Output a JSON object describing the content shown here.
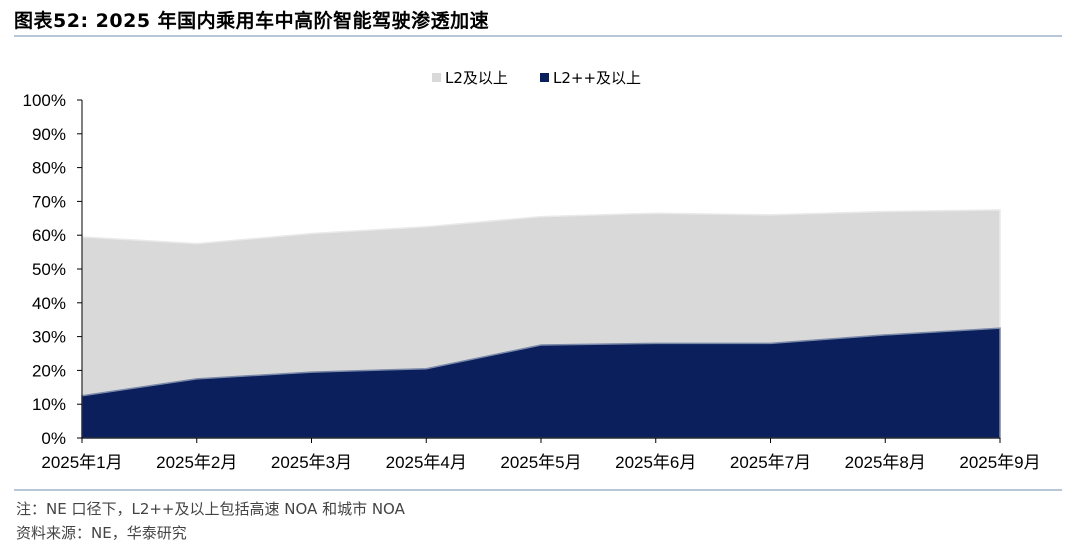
{
  "header": {
    "title": "图表52:  2025 年国内乘用车中高阶智能驾驶渗透加速"
  },
  "footer": {
    "note": "注：NE 口径下，L2++及以上包括高速 NOA 和城市 NOA",
    "source": "资料来源：NE，华泰研究"
  },
  "chart_data": {
    "type": "area",
    "stacking": "overlapping",
    "categories": [
      "2025年1月",
      "2025年2月",
      "2025年3月",
      "2025年4月",
      "2025年5月",
      "2025年6月",
      "2025年7月",
      "2025年8月",
      "2025年9月"
    ],
    "series": [
      {
        "name": "L2及以上",
        "color": "#d9d9d9",
        "values": [
          59.5,
          57.5,
          60.5,
          62.5,
          65.5,
          66.5,
          66.0,
          67.0,
          67.5
        ]
      },
      {
        "name": "L2++及以上",
        "color": "#0a1f5c",
        "values": [
          12.5,
          17.5,
          19.5,
          20.5,
          27.5,
          28.0,
          28.0,
          30.5,
          32.5
        ]
      }
    ],
    "yticks": [
      "0%",
      "10%",
      "20%",
      "30%",
      "40%",
      "50%",
      "60%",
      "70%",
      "80%",
      "90%",
      "100%"
    ],
    "ylim": [
      0,
      100
    ],
    "legend_position": "top-center",
    "grid": false
  }
}
